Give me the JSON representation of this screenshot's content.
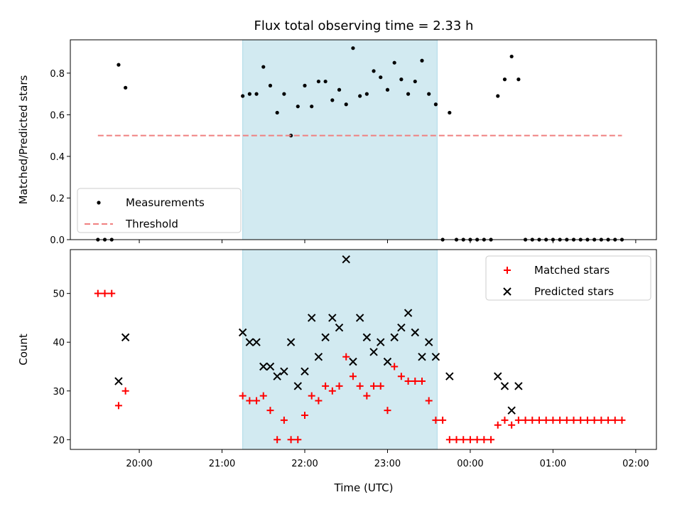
{
  "chart_data": {
    "title": "Flux total observing time = 2.33 h",
    "xlabel": "Time (UTC)",
    "x_ticks": [
      "20:00",
      "21:00",
      "22:00",
      "23:00",
      "00:00",
      "01:00",
      "02:00"
    ],
    "colors": {
      "shade": "#add8e6",
      "measurement": "#000000",
      "threshold": "#f08080",
      "matched": "#ff0000",
      "predicted": "#000000"
    },
    "shaded_interval": {
      "start": "21:15",
      "end": "23:36"
    },
    "panels": [
      {
        "type": "scatter",
        "ylabel": "Matched/Predicted stars",
        "ylim": [
          0,
          0.96
        ],
        "y_ticks": [
          0.0,
          0.2,
          0.4,
          0.6,
          0.8
        ],
        "legend": {
          "placement": "lower-left",
          "entries": [
            "Measurements",
            "Threshold"
          ]
        },
        "series": [
          {
            "name": "Measurements",
            "marker": "dot",
            "x": [
              "19:30",
              "19:35",
              "19:40",
              "19:45",
              "19:50",
              "21:15",
              "21:20",
              "21:25",
              "21:30",
              "21:35",
              "21:40",
              "21:45",
              "21:50",
              "21:55",
              "22:00",
              "22:05",
              "22:10",
              "22:15",
              "22:20",
              "22:25",
              "22:30",
              "22:35",
              "22:40",
              "22:45",
              "22:50",
              "22:55",
              "23:00",
              "23:05",
              "23:10",
              "23:15",
              "23:20",
              "23:25",
              "23:30",
              "23:35",
              "23:40",
              "23:45",
              "23:50",
              "23:55",
              "00:00",
              "00:05",
              "00:10",
              "00:15",
              "00:20",
              "00:25",
              "00:30",
              "00:35",
              "00:40",
              "00:45",
              "00:50",
              "00:55",
              "01:00",
              "01:05",
              "01:10",
              "01:15",
              "01:20",
              "01:25",
              "01:30",
              "01:35",
              "01:40",
              "01:45",
              "01:50"
            ],
            "y": [
              0,
              0,
              0,
              0.84,
              0.73,
              0.69,
              0.7,
              0.7,
              0.83,
              0.74,
              0.61,
              0.7,
              0.5,
              0.64,
              0.74,
              0.64,
              0.76,
              0.76,
              0.67,
              0.72,
              0.65,
              0.92,
              0.69,
              0.7,
              0.81,
              0.78,
              0.72,
              0.85,
              0.77,
              0.7,
              0.76,
              0.86,
              0.7,
              0.65,
              0,
              0.61,
              0,
              0,
              0,
              0,
              0,
              0,
              0.69,
              0.77,
              0.88,
              0.77,
              0,
              0,
              0,
              0,
              0,
              0,
              0,
              0,
              0,
              0,
              0,
              0,
              0,
              0,
              0
            ]
          },
          {
            "name": "Threshold",
            "line": "dashed",
            "x": [
              "19:30",
              "01:50"
            ],
            "y": [
              0.5,
              0.5
            ]
          }
        ]
      },
      {
        "type": "scatter",
        "ylabel": "Count",
        "ylim": [
          18,
          59
        ],
        "y_ticks": [
          20,
          30,
          40,
          50
        ],
        "legend": {
          "placement": "upper-right",
          "entries": [
            "Matched stars",
            "Predicted stars"
          ]
        },
        "series": [
          {
            "name": "Matched stars",
            "marker": "plus",
            "x": [
              "19:30",
              "19:35",
              "19:40",
              "19:45",
              "19:50",
              "21:15",
              "21:20",
              "21:25",
              "21:30",
              "21:35",
              "21:40",
              "21:45",
              "21:50",
              "21:55",
              "22:00",
              "22:05",
              "22:10",
              "22:15",
              "22:20",
              "22:25",
              "22:30",
              "22:35",
              "22:40",
              "22:45",
              "22:50",
              "22:55",
              "23:00",
              "23:05",
              "23:10",
              "23:15",
              "23:20",
              "23:25",
              "23:30",
              "23:35",
              "23:40",
              "23:45",
              "23:50",
              "23:55",
              "00:00",
              "00:05",
              "00:10",
              "00:15",
              "00:20",
              "00:25",
              "00:30",
              "00:35",
              "00:40",
              "00:45",
              "00:50",
              "00:55",
              "01:00",
              "01:05",
              "01:10",
              "01:15",
              "01:20",
              "01:25",
              "01:30",
              "01:35",
              "01:40",
              "01:45",
              "01:50"
            ],
            "y": [
              50,
              50,
              50,
              27,
              30,
              29,
              28,
              28,
              29,
              26,
              20,
              24,
              20,
              20,
              25,
              29,
              28,
              31,
              30,
              31,
              37,
              33,
              31,
              29,
              31,
              31,
              26,
              35,
              33,
              32,
              32,
              32,
              28,
              24,
              24,
              20,
              20,
              20,
              20,
              20,
              20,
              20,
              23,
              24,
              23,
              24,
              24,
              24,
              24,
              24,
              24,
              24,
              24,
              24,
              24,
              24,
              24,
              24,
              24,
              24,
              24
            ]
          },
          {
            "name": "Predicted stars",
            "marker": "x",
            "x": [
              "19:45",
              "19:50",
              "21:15",
              "21:20",
              "21:25",
              "21:30",
              "21:35",
              "21:40",
              "21:45",
              "21:50",
              "21:55",
              "22:00",
              "22:05",
              "22:10",
              "22:15",
              "22:20",
              "22:25",
              "22:30",
              "22:35",
              "22:40",
              "22:45",
              "22:50",
              "22:55",
              "23:00",
              "23:05",
              "23:10",
              "23:15",
              "23:20",
              "23:25",
              "23:30",
              "23:35",
              "23:45",
              "00:20",
              "00:25",
              "00:30",
              "00:35"
            ],
            "y": [
              32,
              41,
              42,
              40,
              40,
              35,
              35,
              33,
              34,
              40,
              31,
              34,
              45,
              37,
              41,
              45,
              43,
              57,
              36,
              45,
              41,
              38,
              40,
              36,
              41,
              43,
              46,
              42,
              37,
              40,
              37,
              33,
              33,
              31,
              26,
              31
            ]
          }
        ]
      }
    ]
  }
}
